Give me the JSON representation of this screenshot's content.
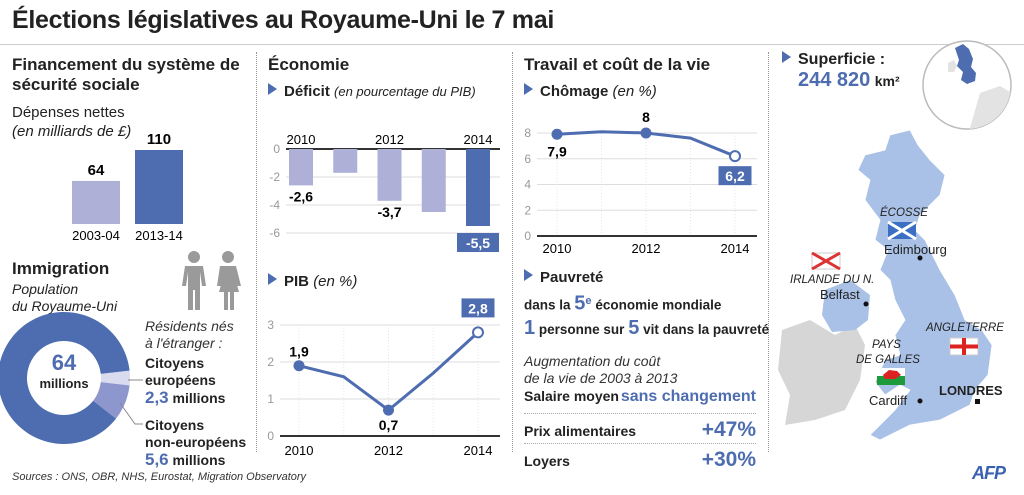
{
  "title": "Élections législatives au Royaume-Uni le 7 mai",
  "colors": {
    "dark_blue": "#4E6DB0",
    "light_purple": "#AEB0D8",
    "map_blue": "#A9C1E6",
    "grey": "#D6D6D6"
  },
  "financement": {
    "heading": "Financement du système de sécurité sociale",
    "subtitle": "Dépenses nettes",
    "unit": "(en milliards de £)"
  },
  "immigration": {
    "heading": "Immigration",
    "subtitle_1": "Population",
    "subtitle_2": "du Royaume-Uni",
    "total_value": "64",
    "total_unit": "millions",
    "residents_1": "Résidents nés",
    "residents_2": "à l'étranger :",
    "eu_label_1": "Citoyens",
    "eu_label_2": "européens",
    "eu_value": "2,3",
    "eu_unit": "millions",
    "noneu_label_1": "Citoyens",
    "noneu_label_2": "non-européens",
    "noneu_value": "5,6",
    "noneu_unit": "millions",
    "icons": [
      "man-icon",
      "woman-icon"
    ]
  },
  "economie": {
    "heading": "Économie",
    "deficit_title": "Déficit",
    "deficit_unit": "(en pourcentage du PIB)",
    "pib_title": "PIB",
    "pib_unit": "(en %)"
  },
  "travail": {
    "heading": "Travail et coût de la vie",
    "chomage_title": "Chômage",
    "chomage_unit": "(en %)",
    "pauvrete_title": "Pauvreté",
    "pauv_line1_a": "dans la",
    "pauv_line1_num": "5",
    "pauv_line1_sup": "e",
    "pauv_line1_b": "économie mondiale",
    "pauv_line2_num1": "1",
    "pauv_line2_a": "personne sur",
    "pauv_line2_num2": "5",
    "pauv_line2_b": "vit dans la pauvreté",
    "cost_intro_1": "Augmentation du coût",
    "cost_intro_2": "de la vie de 2003 à 2013",
    "cost_rows": [
      {
        "label": "Salaire moyen",
        "value": "sans changement"
      },
      {
        "label": "Prix alimentaires",
        "value": "+47%"
      },
      {
        "label": "Loyers",
        "value": "+30%"
      }
    ]
  },
  "superficie": {
    "label": "Superficie :",
    "value": "244 820",
    "unit": "km²"
  },
  "map": {
    "regions": [
      "ÉCOSSE",
      "IRLANDE DU N.",
      "PAYS",
      "DE GALLES",
      "ANGLETERRE"
    ],
    "cities": [
      "Edimbourg",
      "Belfast",
      "Cardiff",
      "LONDRES"
    ],
    "flags": [
      "scotland-flag",
      "northern-ireland-flag",
      "wales-flag",
      "england-flag"
    ]
  },
  "sources": "Sources : ONS, OBR, NHS, Eurostat, Migration Observatory",
  "logo": "AFP",
  "chart_data": [
    {
      "id": "depenses",
      "type": "bar",
      "categories": [
        "2003-04",
        "2013-14"
      ],
      "values": [
        64,
        110
      ],
      "value_labels": [
        "64",
        "110"
      ],
      "colors": [
        "#AEB0D8",
        "#4E6DB0"
      ],
      "ylabel": "(en milliards de £)",
      "ylim": [
        0,
        110
      ]
    },
    {
      "id": "immigration",
      "type": "pie",
      "donut": true,
      "total": 64,
      "slices": [
        {
          "label": "Citoyens européens",
          "value": 2.3,
          "color": "#D9DBEF"
        },
        {
          "label": "Citoyens non-européens",
          "value": 5.6,
          "color": "#8E96CE"
        },
        {
          "label": "",
          "value": 56.1,
          "color": "#4E6DB0"
        }
      ]
    },
    {
      "id": "deficit",
      "type": "bar",
      "title": "Déficit (en pourcentage du PIB)",
      "x": [
        2010,
        2011,
        2012,
        2013,
        2014
      ],
      "x_tick_labels": [
        "2010",
        "2012",
        "2014"
      ],
      "values": [
        -2.6,
        -1.7,
        -3.7,
        -4.5,
        -5.5
      ],
      "data_labels": {
        "2010": "-2,6",
        "2012": "-3,7",
        "2014": "-5,5"
      },
      "ylim": [
        -6,
        0
      ],
      "y_ticks": [
        0,
        -2,
        -4,
        -6
      ],
      "grid": true
    },
    {
      "id": "pib",
      "type": "line",
      "title": "PIB (en %)",
      "x": [
        2010,
        2011,
        2012,
        2013,
        2014
      ],
      "x_tick_labels": [
        "2010",
        "2012",
        "2014"
      ],
      "values": [
        1.9,
        1.6,
        0.7,
        1.7,
        2.8
      ],
      "data_labels": {
        "2010": "1,9",
        "2012": "0,7",
        "2014": "2,8"
      },
      "ylim": [
        0,
        3
      ],
      "y_ticks": [
        0,
        1,
        2,
        3
      ],
      "grid": true
    },
    {
      "id": "chomage",
      "type": "line",
      "title": "Chômage (en %)",
      "x": [
        2010,
        2011,
        2012,
        2013,
        2014
      ],
      "x_tick_labels": [
        "2010",
        "2012",
        "2014"
      ],
      "values": [
        7.9,
        8.1,
        8.0,
        7.6,
        6.2
      ],
      "data_labels": {
        "2010": "7,9",
        "2012": "8",
        "2014": "6,2"
      },
      "ylim": [
        0,
        8
      ],
      "y_ticks": [
        0,
        2,
        4,
        6,
        8
      ],
      "grid": true
    }
  ]
}
